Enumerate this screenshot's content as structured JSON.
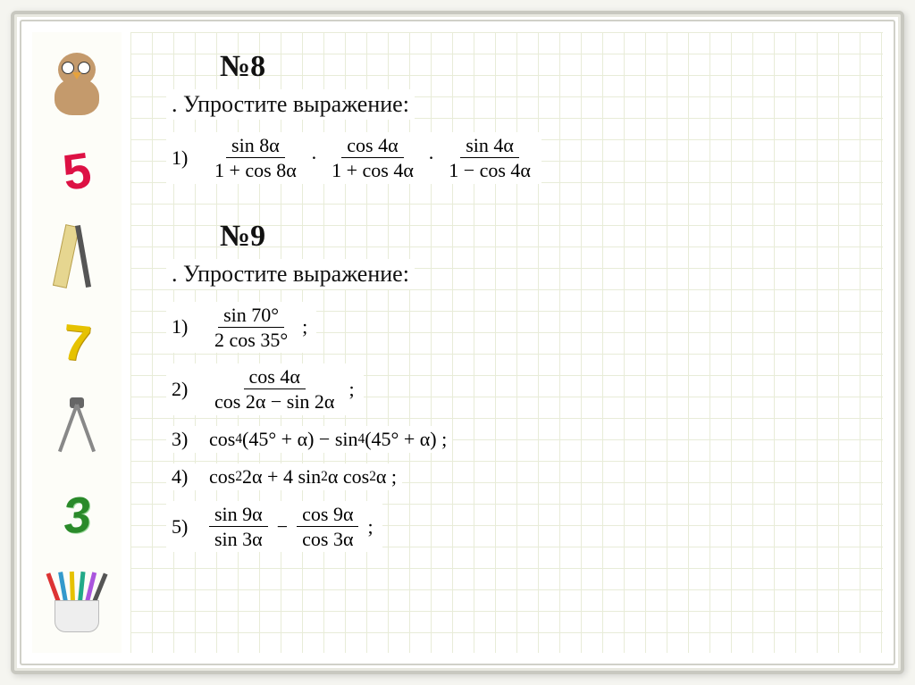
{
  "colors": {
    "grid": "#e8ecd8",
    "frame_border": "#c8c8c0",
    "background": "#ffffff",
    "text": "#111111"
  },
  "sidebar": {
    "items": [
      {
        "type": "owl"
      },
      {
        "type": "digit",
        "value": "5",
        "color": "#d14"
      },
      {
        "type": "ruler"
      },
      {
        "type": "digit",
        "value": "7",
        "color": "#e6c200"
      },
      {
        "type": "compass"
      },
      {
        "type": "digit",
        "value": "3",
        "color": "#2a8a2a"
      },
      {
        "type": "cup"
      }
    ]
  },
  "problems": [
    {
      "number": "№8",
      "subtitle": ". Упростите выражение:",
      "items": [
        {
          "n": "1)",
          "parts": [
            {
              "type": "frac",
              "num": "sin 8α",
              "den": "1 + cos 8α"
            },
            {
              "type": "op",
              "text": "·"
            },
            {
              "type": "frac",
              "num": "cos 4α",
              "den": "1 + cos 4α"
            },
            {
              "type": "op",
              "text": "·"
            },
            {
              "type": "frac",
              "num": "sin 4α",
              "den": "1 − cos 4α"
            }
          ]
        }
      ]
    },
    {
      "number": "№9",
      "subtitle": ". Упростите выражение:",
      "items": [
        {
          "n": "1)",
          "parts": [
            {
              "type": "frac",
              "num": "sin 70°",
              "den": "2 cos 35°"
            },
            {
              "type": "op",
              "text": ";"
            }
          ]
        },
        {
          "n": "2)",
          "parts": [
            {
              "type": "frac",
              "num": "cos 4α",
              "den": "cos 2α − sin 2α"
            },
            {
              "type": "op",
              "text": ";"
            }
          ]
        },
        {
          "n": "3)",
          "parts": [
            {
              "type": "text",
              "text": "cos"
            },
            {
              "type": "sup",
              "text": "4"
            },
            {
              "type": "text",
              "text": " (45° + α) − sin"
            },
            {
              "type": "sup",
              "text": "4"
            },
            {
              "type": "text",
              "text": " (45° + α) ;"
            }
          ]
        },
        {
          "n": "4)",
          "parts": [
            {
              "type": "text",
              "text": "cos"
            },
            {
              "type": "sup",
              "text": "2"
            },
            {
              "type": "text",
              "text": " 2α + 4 sin"
            },
            {
              "type": "sup",
              "text": "2"
            },
            {
              "type": "text",
              "text": " α cos"
            },
            {
              "type": "sup",
              "text": "2"
            },
            {
              "type": "text",
              "text": " α ;"
            }
          ]
        },
        {
          "n": "5)",
          "parts": [
            {
              "type": "frac",
              "num": "sin 9α",
              "den": "sin 3α"
            },
            {
              "type": "op",
              "text": "−"
            },
            {
              "type": "frac",
              "num": "cos 9α",
              "den": "cos 3α"
            },
            {
              "type": "op",
              "text": ";"
            }
          ]
        }
      ]
    }
  ]
}
